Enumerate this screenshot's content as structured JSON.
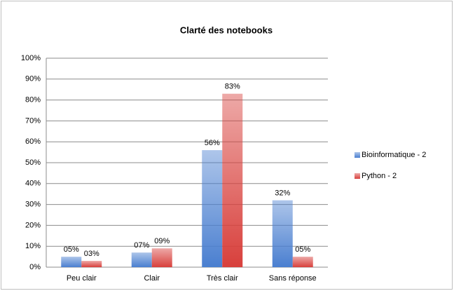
{
  "chart_data": {
    "type": "bar",
    "title": "Clarté des notebooks",
    "categories": [
      "Peu clair",
      "Clair",
      "Très clair",
      "Sans réponse"
    ],
    "series": [
      {
        "name": "Bioinformatique - 2",
        "color": "#4a7fd0",
        "values": [
          5,
          7,
          56,
          32
        ],
        "value_labels": [
          "05%",
          "07%",
          "56%",
          "32%"
        ]
      },
      {
        "name": "Python - 2",
        "color": "#d8403c",
        "values": [
          3,
          9,
          83,
          5
        ],
        "value_labels": [
          "03%",
          "09%",
          "83%",
          "05%"
        ]
      }
    ],
    "ylim": [
      0,
      100
    ],
    "yticks": [
      {
        "value": 0,
        "label": "0%"
      },
      {
        "value": 10,
        "label": "10%"
      },
      {
        "value": 20,
        "label": "20%"
      },
      {
        "value": 30,
        "label": "30%"
      },
      {
        "value": 40,
        "label": "40%"
      },
      {
        "value": 50,
        "label": "50%"
      },
      {
        "value": 60,
        "label": "60%"
      },
      {
        "value": 70,
        "label": "70%"
      },
      {
        "value": 80,
        "label": "80%"
      },
      {
        "value": 90,
        "label": "90%"
      },
      {
        "value": 100,
        "label": "100%"
      }
    ],
    "grid": true,
    "legend": "right"
  }
}
